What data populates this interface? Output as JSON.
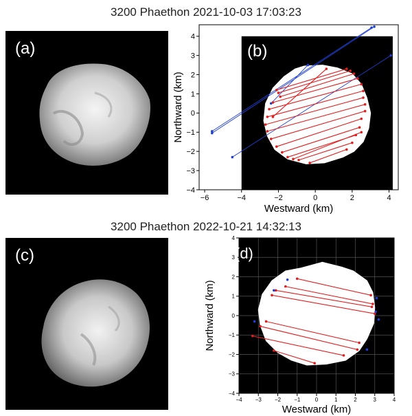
{
  "figure": {
    "title_top": "3200 Phaethon 2021-10-03 17:03:23",
    "title_bottom": "3200 Phaethon 2022-10-21 14:32:13",
    "panel_labels": {
      "a": "(a)",
      "b": "(b)",
      "c": "(c)",
      "d": "(d)"
    }
  },
  "chart_data": [
    {
      "type": "scatter",
      "panel": "(b)",
      "xlabel": "Westward (km)",
      "ylabel": "Northward (km)",
      "xlim": [
        -6.3,
        4.5
      ],
      "ylim": [
        -4,
        4.6
      ],
      "xticks": [
        -6,
        -4,
        -2,
        0,
        2,
        4
      ],
      "yticks": [
        -4,
        -3,
        -2,
        -1,
        0,
        1,
        2,
        3,
        4
      ],
      "x_tick_labels": [
        "−6",
        "−4",
        "−2",
        "0",
        "2",
        "4"
      ],
      "y_tick_labels": [
        "−4",
        "−3",
        "−2",
        "−1",
        "0",
        "1",
        "2",
        "3",
        "4"
      ],
      "grid": false,
      "black_region": {
        "x": [
          -4,
          4.2
        ],
        "y": [
          -4,
          4
        ]
      },
      "outline": [
        [
          -0.6,
          2.45
        ],
        [
          0.4,
          2.5
        ],
        [
          1.2,
          2.35
        ],
        [
          2.0,
          2.05
        ],
        [
          2.5,
          1.5
        ],
        [
          2.8,
          0.8
        ],
        [
          3.0,
          0.0
        ],
        [
          2.9,
          -0.8
        ],
        [
          2.6,
          -1.5
        ],
        [
          2.1,
          -2.0
        ],
        [
          1.5,
          -2.3
        ],
        [
          0.5,
          -2.6
        ],
        [
          -0.5,
          -2.65
        ],
        [
          -1.5,
          -2.4
        ],
        [
          -2.2,
          -1.9
        ],
        [
          -2.6,
          -1.2
        ],
        [
          -2.8,
          -0.4
        ],
        [
          -2.7,
          0.5
        ],
        [
          -2.3,
          1.3
        ],
        [
          -1.7,
          1.9
        ],
        [
          -1.1,
          2.3
        ]
      ],
      "red_chords": [
        [
          [
            -2.1,
            1.2
          ],
          [
            1.7,
            2.3
          ]
        ],
        [
          [
            -2.0,
            1.05
          ],
          [
            1.9,
            2.2
          ]
        ],
        [
          [
            -1.9,
            0.85
          ],
          [
            2.1,
            2.05
          ]
        ],
        [
          [
            -2.3,
            0.55
          ],
          [
            2.3,
            1.8
          ]
        ],
        [
          [
            -2.5,
            0.2
          ],
          [
            2.5,
            1.5
          ]
        ],
        [
          [
            -2.6,
            -0.2
          ],
          [
            2.6,
            1.15
          ]
        ],
        [
          [
            -2.7,
            -0.6
          ],
          [
            2.6,
            0.8
          ]
        ],
        [
          [
            -2.6,
            -0.95
          ],
          [
            2.7,
            0.45
          ]
        ],
        [
          [
            -2.4,
            -1.35
          ],
          [
            2.7,
            0.1
          ]
        ],
        [
          [
            -2.1,
            -1.75
          ],
          [
            2.5,
            -0.3
          ]
        ],
        [
          [
            -1.8,
            -2.05
          ],
          [
            2.4,
            -0.75
          ]
        ],
        [
          [
            -1.5,
            -2.3
          ],
          [
            2.2,
            -1.15
          ]
        ],
        [
          [
            -0.9,
            -2.45
          ],
          [
            2.0,
            -1.55
          ]
        ],
        [
          [
            -0.3,
            -2.6
          ],
          [
            1.7,
            -1.9
          ]
        ],
        [
          [
            -2.3,
            -0.2
          ],
          [
            0.6,
            2.3
          ]
        ],
        [
          [
            -1.2,
            -2.4
          ],
          [
            2.5,
            -1.0
          ]
        ]
      ],
      "blue_chords": [
        [
          [
            -5.6,
            -1.05
          ],
          [
            3.2,
            4.5
          ]
        ],
        [
          [
            -5.6,
            -0.95
          ],
          [
            3.05,
            4.45
          ]
        ],
        [
          [
            -4.5,
            -2.3
          ],
          [
            4.1,
            3.0
          ]
        ],
        [
          [
            -2.4,
            0.5
          ],
          [
            -0.4,
            2.5
          ]
        ]
      ]
    },
    {
      "type": "scatter",
      "panel": "(d)",
      "xlabel": "Westward (km)",
      "ylabel": "Northward (km)",
      "xlim": [
        -4,
        4
      ],
      "ylim": [
        -4,
        4
      ],
      "xticks": [
        -4,
        -3,
        -2,
        -1,
        0,
        1,
        2,
        3,
        4
      ],
      "yticks": [
        -4,
        -3,
        -2,
        -1,
        0,
        1,
        2,
        3,
        4
      ],
      "x_tick_labels": [
        "−4",
        "−3",
        "−2",
        "−1",
        "0",
        "1",
        "2",
        "3",
        "4"
      ],
      "y_tick_labels": [
        "−4",
        "−3",
        "−2",
        "−1",
        "0",
        "1",
        "2",
        "3",
        "4"
      ],
      "grid": true,
      "outline": [
        [
          -0.8,
          2.45
        ],
        [
          0.3,
          2.75
        ],
        [
          1.3,
          2.5
        ],
        [
          1.9,
          2.3
        ],
        [
          2.6,
          1.8
        ],
        [
          2.9,
          1.2
        ],
        [
          3.0,
          0.4
        ],
        [
          2.95,
          -0.4
        ],
        [
          2.6,
          -1.2
        ],
        [
          2.2,
          -1.8
        ],
        [
          1.5,
          -2.3
        ],
        [
          0.5,
          -2.5
        ],
        [
          -0.5,
          -2.55
        ],
        [
          -1.3,
          -2.3
        ],
        [
          -2.0,
          -1.9
        ],
        [
          -2.6,
          -1.3
        ],
        [
          -2.9,
          -0.5
        ],
        [
          -3.0,
          0.3
        ],
        [
          -2.8,
          1.1
        ],
        [
          -2.3,
          1.8
        ],
        [
          -1.6,
          2.3
        ]
      ],
      "red_chords": [
        [
          [
            -1.0,
            1.9
          ],
          [
            2.8,
            1.05
          ]
        ],
        [
          [
            -1.6,
            1.5
          ],
          [
            2.9,
            0.6
          ]
        ],
        [
          [
            -2.1,
            1.3
          ],
          [
            2.85,
            0.45
          ]
        ],
        [
          [
            -2.3,
            1.05
          ],
          [
            3.0,
            0.1
          ]
        ],
        [
          [
            -2.6,
            -0.3
          ],
          [
            2.2,
            -1.4
          ]
        ],
        [
          [
            -2.9,
            -0.55
          ],
          [
            2.1,
            -1.75
          ]
        ],
        [
          [
            -3.3,
            -1.05
          ],
          [
            1.4,
            -2.05
          ]
        ],
        [
          [
            -2.2,
            -1.8
          ],
          [
            -0.1,
            -2.45
          ]
        ]
      ],
      "blue_points": [
        [
          -1.5,
          1.85
        ],
        [
          -2.2,
          1.3
        ],
        [
          -3.2,
          -0.3
        ],
        [
          3.1,
          0.9
        ],
        [
          3.05,
          0.2
        ],
        [
          3.2,
          -0.2
        ],
        [
          2.6,
          -1.75
        ]
      ]
    }
  ]
}
